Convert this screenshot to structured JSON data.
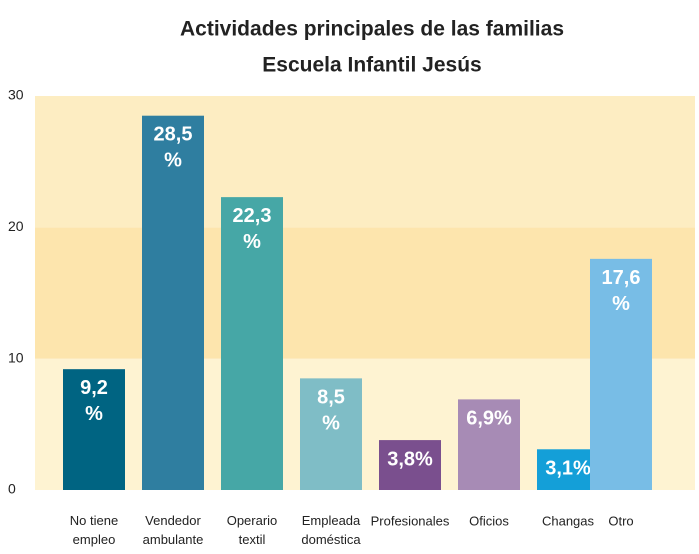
{
  "chart_data": {
    "type": "bar",
    "title": "Actividades principales de las familias",
    "subtitle": "Escuela Infantil Jesús",
    "categories": [
      "No tiene empleo",
      "Vendedor ambulante",
      "Operario textil",
      "Empleada doméstica",
      "Profesionales",
      "Oficios",
      "Changas",
      "Otro"
    ],
    "values": [
      9.2,
      28.5,
      22.3,
      8.5,
      3.8,
      6.9,
      3.1,
      17.6
    ],
    "value_labels": [
      "9,2%",
      "28,5%",
      "22,3%",
      "8,5%",
      "3,8%",
      "6,9%",
      "3,1%",
      "17,6%"
    ],
    "colors": [
      "#006482",
      "#2f7ea0",
      "#46a7a6",
      "#7fbdc6",
      "#7a4f8e",
      "#a78bb5",
      "#149fd8",
      "#78bde6"
    ],
    "ylim": [
      0,
      30
    ],
    "yticks": [
      0,
      10,
      20,
      30
    ]
  }
}
